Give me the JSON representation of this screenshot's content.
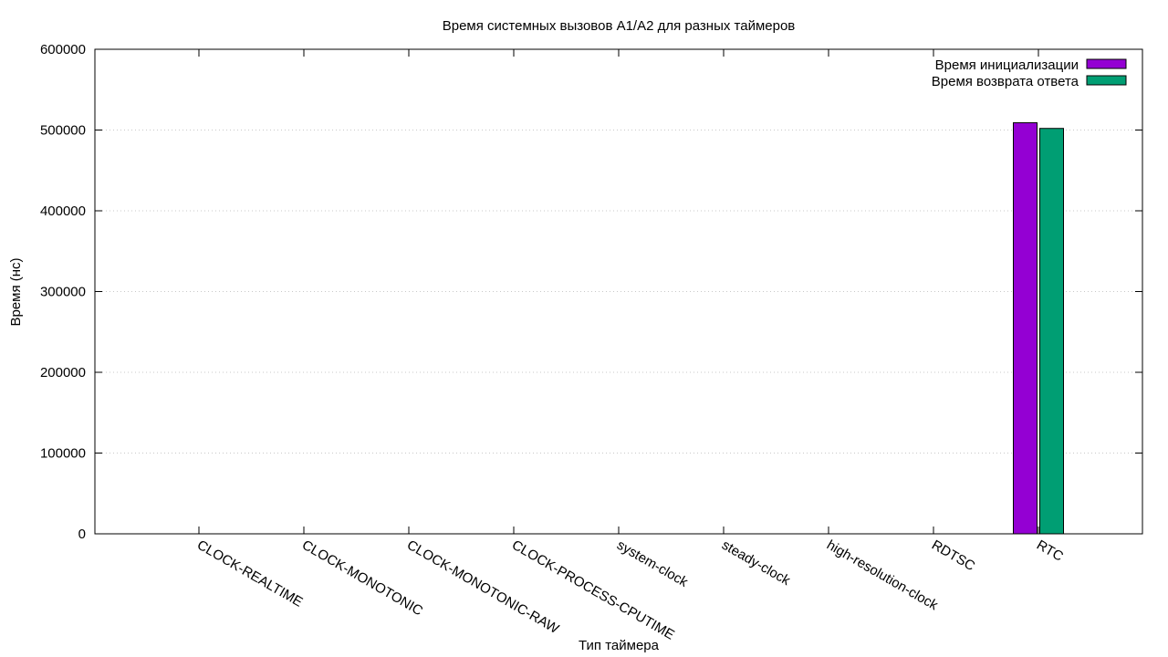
{
  "chart_data": {
    "type": "bar",
    "title": "Время системных вызовов A1/A2 для разных таймеров",
    "xlabel": "Тип таймера",
    "ylabel": "Время (нс)",
    "ylim": [
      0,
      600000
    ],
    "yticks": [
      0,
      100000,
      200000,
      300000,
      400000,
      500000,
      600000
    ],
    "grid": "horizontal-dotted",
    "legend_position": "top-right",
    "categories": [
      "CLOCK-REALTIME",
      "CLOCK-MONOTONIC",
      "CLOCK-MONOTONIC-RAW",
      "CLOCK-PROCESS-CPUTIME",
      "system-clock",
      "steady-clock",
      "high-resolution-clock",
      "RDTSC",
      "RTC"
    ],
    "series": [
      {
        "name": "Время инициализации",
        "color": "#9400d3",
        "values": [
          0,
          0,
          0,
          0,
          0,
          0,
          0,
          0,
          509000
        ]
      },
      {
        "name": "Время возврата ответа",
        "color": "#009e73",
        "values": [
          0,
          0,
          0,
          0,
          0,
          0,
          0,
          0,
          502000
        ]
      }
    ]
  }
}
